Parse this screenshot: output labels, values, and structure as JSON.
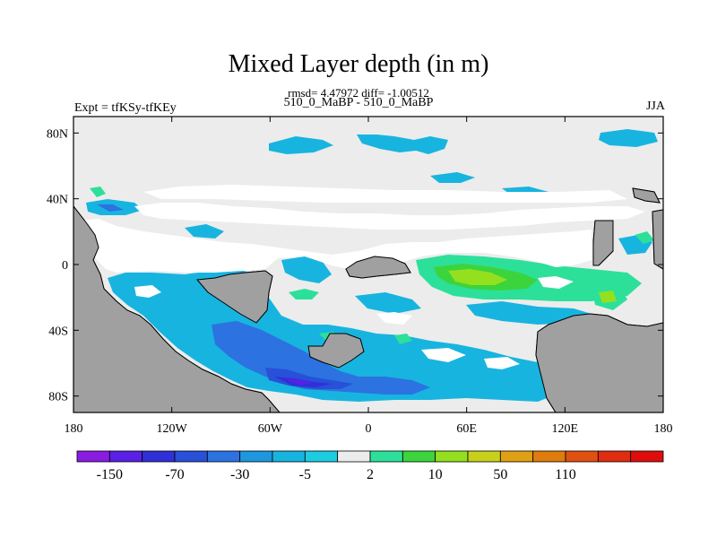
{
  "title": "Mixed Layer depth (in m)",
  "stats": "rmsd= 4.47972 diff= -1.00512",
  "subtitle": "510_0_MaBP - 510_0_MaBP",
  "left_label": "Expt = tfKSy-tfKEy",
  "right_label": "JJA",
  "map": {
    "projection": "cylindrical equidistant",
    "lon_range": [
      -180,
      180
    ],
    "lat_range": [
      -90,
      90
    ],
    "land_color": "#a0a0a0",
    "ocean_background_color": "#ececec",
    "lat_tick_labels": [
      "80N",
      "40N",
      "0",
      "40S",
      "80S"
    ],
    "lat_tick_values": [
      80,
      40,
      0,
      -40,
      -80
    ],
    "lon_tick_labels": [
      "180",
      "120W",
      "60W",
      "0",
      "60E",
      "120E",
      "180"
    ],
    "lon_tick_values": [
      -180,
      -120,
      -60,
      0,
      60,
      120,
      180
    ]
  },
  "colorbar": {
    "colors": [
      "#8a1be0",
      "#5a20e6",
      "#3030d8",
      "#2850d8",
      "#2c72e0",
      "#1e96e0",
      "#18b4e0",
      "#1ccce0",
      "#ececec",
      "#2ce09a",
      "#3cd43c",
      "#94e01e",
      "#c8d01c",
      "#e0a014",
      "#e07c0c",
      "#e05010",
      "#e02c10",
      "#e00c0c"
    ],
    "tick_labels": [
      "-150",
      "-70",
      "-30",
      "-5",
      "2",
      "10",
      "50",
      "110"
    ]
  }
}
